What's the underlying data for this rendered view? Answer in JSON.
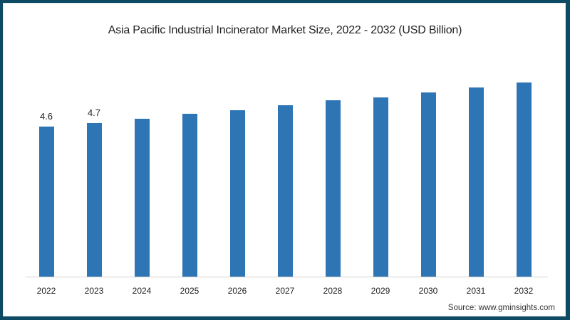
{
  "chart_data": {
    "type": "bar",
    "title": "Asia Pacific Industrial Incinerator Market Size, 2022 - 2032 (USD Billion)",
    "xlabel": "",
    "ylabel": "",
    "categories": [
      "2022",
      "2023",
      "2024",
      "2025",
      "2026",
      "2027",
      "2028",
      "2029",
      "2030",
      "2031",
      "2032"
    ],
    "values": [
      4.6,
      4.7,
      4.85,
      5.0,
      5.1,
      5.25,
      5.4,
      5.5,
      5.65,
      5.8,
      5.95
    ],
    "data_labels": {
      "2022": "4.6",
      "2023": "4.7"
    },
    "ylim": [
      0,
      6.5
    ],
    "grid": false,
    "legend": null,
    "bar_color": "#2e75b6",
    "source": "Source: www.gminsights.com"
  },
  "colors": {
    "bar": "#2e75b6",
    "frame_border": "#0d4a63"
  }
}
